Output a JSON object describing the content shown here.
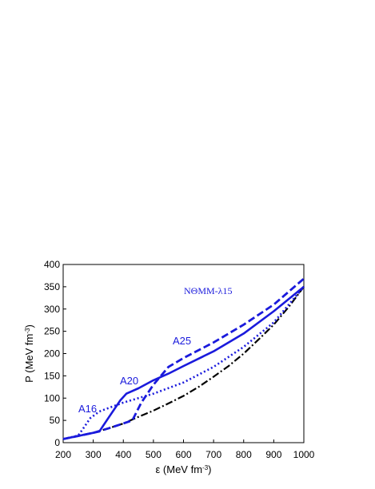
{
  "chart_data": {
    "type": "line",
    "annotations": [
      "NΘMM-λ15",
      "A16",
      "A20",
      "A25"
    ],
    "xlabel": [
      "ε (MeV fm",
      "-3",
      ")"
    ],
    "ylabel": [
      "P (MeV fm",
      "-3",
      ")"
    ],
    "xlim": [
      200,
      1000
    ],
    "xticks": [
      200,
      300,
      400,
      500,
      600,
      700,
      800,
      900,
      1000
    ],
    "ylim": [
      0,
      400
    ],
    "yticks": [
      0,
      50,
      100,
      150,
      200,
      250,
      300,
      350,
      400
    ],
    "series": [
      {
        "color": "#000000",
        "style": "dashdot",
        "x": [
          200,
          250,
          300,
          350,
          400,
          450,
          500,
          550,
          600,
          650,
          700,
          750,
          800,
          850,
          900,
          950,
          1000
        ],
        "values": [
          8,
          15,
          22,
          32,
          43,
          58,
          72,
          88,
          105,
          125,
          148,
          172,
          200,
          232,
          265,
          305,
          350
        ]
      },
      {
        "color": "#1a1adc",
        "style": "dotted",
        "x": [
          200,
          250,
          270,
          290,
          320,
          360,
          400,
          450,
          500,
          600,
          700,
          800,
          900,
          1000
        ],
        "values": [
          8,
          16,
          35,
          55,
          70,
          80,
          90,
          100,
          110,
          135,
          170,
          215,
          270,
          350
        ]
      },
      {
        "color": "#1a1adc",
        "style": "solid",
        "x": [
          200,
          250,
          300,
          320,
          350,
          390,
          410,
          450,
          500,
          550,
          600,
          700,
          800,
          900,
          1000
        ],
        "values": [
          8,
          15,
          22,
          25,
          55,
          95,
          110,
          122,
          140,
          155,
          172,
          205,
          245,
          295,
          350
        ]
      },
      {
        "color": "#1a1adc",
        "style": "dashed",
        "x": [
          200,
          250,
          300,
          350,
          400,
          430,
          460,
          500,
          550,
          600,
          700,
          800,
          900,
          1000
        ],
        "values": [
          8,
          15,
          22,
          32,
          43,
          50,
          90,
          130,
          170,
          190,
          225,
          265,
          310,
          368
        ]
      }
    ]
  }
}
